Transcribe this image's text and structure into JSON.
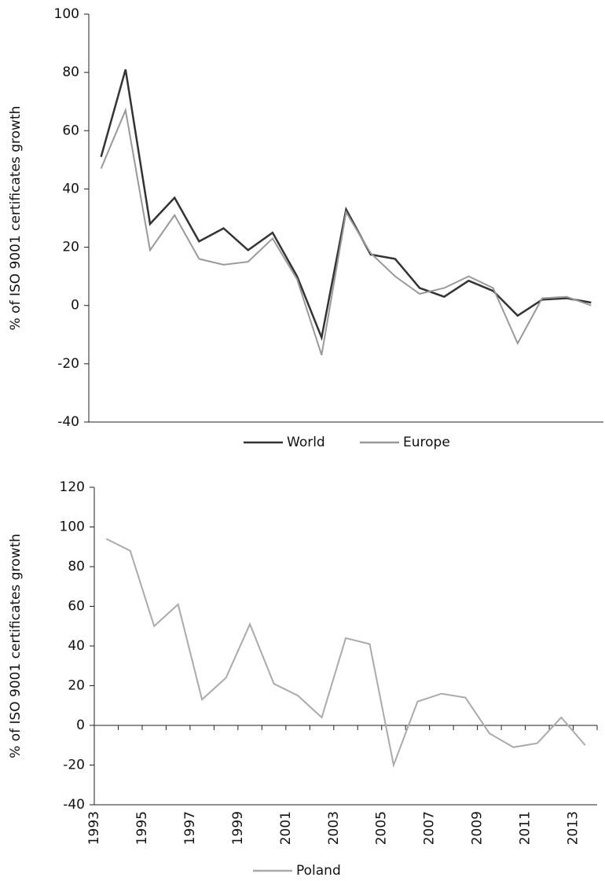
{
  "chart_data": [
    {
      "type": "line",
      "y_label": "% of ISO 9001 certificates growth",
      "categories": [
        null,
        null,
        null,
        null,
        null,
        null,
        null,
        null,
        null,
        null,
        null,
        null,
        null,
        null,
        null,
        null,
        null,
        null,
        null,
        null,
        null
      ],
      "series": [
        {
          "name": "World",
          "color": "#333333",
          "values": [
            51,
            81,
            28,
            37,
            22,
            26.5,
            19,
            25,
            10,
            -11,
            33,
            17.5,
            16,
            6,
            3,
            8.5,
            5,
            -3.5,
            2,
            2.5,
            1
          ]
        },
        {
          "name": "Europe",
          "color": "#999999",
          "values": [
            47,
            67,
            19,
            31,
            16,
            14,
            15,
            23,
            9,
            -17,
            32,
            18,
            10,
            4,
            6,
            10,
            6,
            -13,
            2.5,
            3,
            0
          ]
        }
      ],
      "ylim": [
        -40,
        100
      ],
      "yticks": [
        -40,
        -20,
        0,
        20,
        40,
        60,
        80,
        100
      ]
    },
    {
      "type": "line",
      "y_label": "% of ISO 9001 certificates growth",
      "categories": [
        "1993",
        null,
        "1995",
        null,
        "1997",
        null,
        "1999",
        null,
        "2001",
        null,
        "2003",
        null,
        "2005",
        null,
        "2007",
        null,
        "2009",
        null,
        "2011",
        null,
        "2013"
      ],
      "series": [
        {
          "name": "Poland",
          "color": "#aaaaaa",
          "values": [
            94,
            88,
            50,
            61,
            13,
            24,
            51,
            21,
            15,
            4,
            44,
            41,
            -20,
            12,
            16,
            14,
            -4,
            -11,
            -9,
            4,
            -10
          ]
        }
      ],
      "ylim": [
        -40,
        120
      ],
      "yticks": [
        -40,
        -20,
        0,
        20,
        40,
        60,
        80,
        100,
        120
      ]
    }
  ]
}
